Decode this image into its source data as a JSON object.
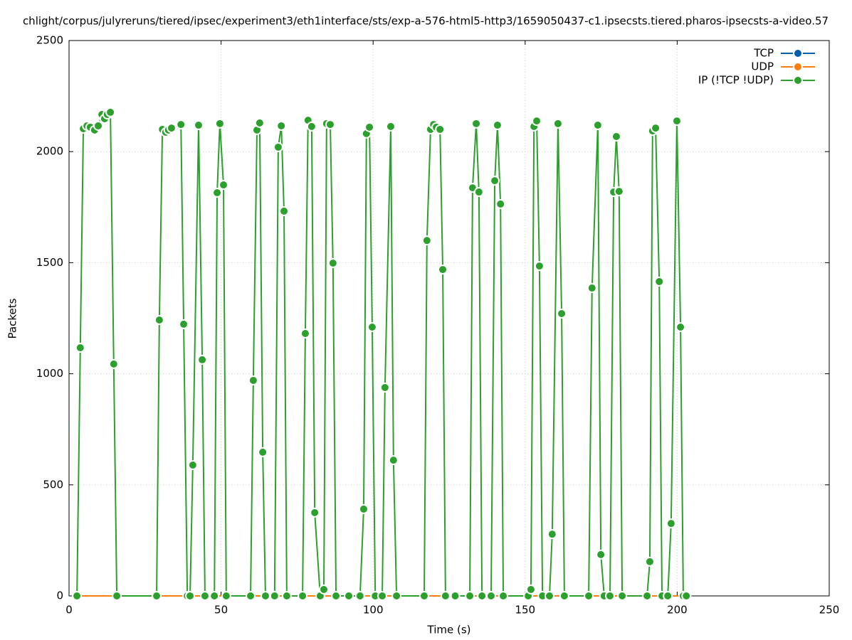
{
  "chart_data": {
    "type": "line",
    "title": "chlight/corpus/julyreruns/tiered/ipsec/experiment3/eth1interface/sts/exp-a-576-html5-http3/1659050437-c1.ipsecsts.tiered.pharos-ipsecsts-a-video.57",
    "xlabel": "Time (s)",
    "ylabel": "Packets",
    "xlim": [
      0,
      250
    ],
    "xticks": [
      0,
      50,
      100,
      150,
      200,
      250
    ],
    "ylim": [
      0,
      2500
    ],
    "yticks": [
      0,
      500,
      1000,
      1500,
      2000,
      2500
    ],
    "grid": true,
    "legend": "top-right",
    "series": [
      {
        "name": "TCP",
        "color": "#0060ad",
        "x": [
          2.6,
          203
        ],
        "values": [
          0,
          0
        ]
      },
      {
        "name": "UDP",
        "color": "#ff7f0e",
        "x": [
          2.6,
          203
        ],
        "values": [
          0,
          0
        ]
      },
      {
        "name": "IP (!TCP  !UDP)",
        "color": "#2ca02c",
        "x": [
          2.6,
          3.7,
          4.7,
          5.9,
          7.0,
          8.4,
          9.6,
          10.8,
          11.7,
          12.6,
          13.6,
          14.7,
          15.7,
          28.8,
          29.7,
          30.7,
          31.8,
          32.7,
          33.7,
          36.8,
          37.7,
          38.9,
          39.8,
          40.7,
          42.6,
          43.8,
          44.7,
          47.8,
          48.7,
          49.6,
          50.8,
          51.7,
          59.7,
          60.6,
          61.8,
          62.7,
          63.7,
          64.6,
          67.6,
          68.8,
          69.8,
          70.7,
          71.6,
          76.8,
          77.7,
          78.6,
          79.8,
          80.8,
          82.6,
          83.8,
          84.7,
          85.9,
          86.8,
          87.8,
          92,
          95.7,
          96.9,
          97.8,
          98.8,
          99.7,
          100.7,
          103,
          103.9,
          105.8,
          106.7,
          107.7,
          116.8,
          117.7,
          118.9,
          119.9,
          120.8,
          122,
          122.9,
          123.8,
          127,
          131.8,
          132.7,
          133.9,
          134.8,
          135.8,
          138.8,
          140,
          140.9,
          141.9,
          142.8,
          151,
          151.9,
          152.9,
          153.8,
          154.7,
          155.7,
          158,
          158.9,
          160.8,
          162,
          162.9,
          170.9,
          172,
          173.9,
          174.9,
          176,
          177.9,
          179.1,
          180,
          180.9,
          181.9,
          190.1,
          191,
          191.9,
          192.9,
          194.1,
          195,
          196.9,
          198,
          199.9,
          201.1,
          202,
          203
        ],
        "values": [
          0,
          1117,
          2103,
          2116,
          2110,
          2097,
          2116,
          2167,
          2148,
          2167,
          2177,
          1044,
          0,
          0,
          1242,
          2100,
          2087,
          2097,
          2106,
          2122,
          1223,
          0,
          0,
          589,
          2119,
          1063,
          0,
          0,
          1815,
          2126,
          1850,
          0,
          0,
          970,
          2097,
          2129,
          647,
          0,
          0,
          2020,
          2116,
          1732,
          0,
          0,
          1181,
          2141,
          2113,
          375,
          0,
          29,
          2126,
          2122,
          1498,
          0,
          0,
          0,
          391,
          2081,
          2110,
          1210,
          0,
          0,
          938,
          2113,
          611,
          0,
          0,
          1600,
          2100,
          2122,
          2110,
          2100,
          1469,
          0,
          0,
          0,
          1837,
          2126,
          1818,
          0,
          0,
          1869,
          2119,
          1764,
          0,
          0,
          29,
          2113,
          2138,
          1485,
          0,
          0,
          278,
          2126,
          1271,
          0,
          0,
          1386,
          2119,
          186,
          0,
          0,
          1818,
          2068,
          1821,
          0,
          0,
          154,
          2093,
          2106,
          1415,
          0,
          0,
          326,
          2138,
          1210,
          0,
          0
        ]
      }
    ]
  }
}
